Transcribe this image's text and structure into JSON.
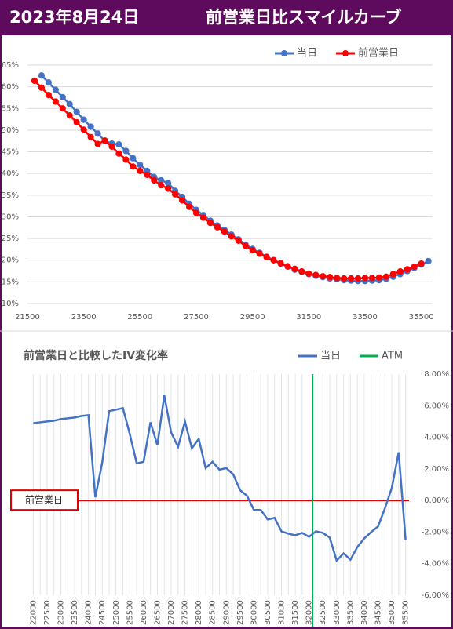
{
  "header": {
    "date": "2023年8月24日",
    "title": "前営業日比スマイルカーブ"
  },
  "chart_data": [
    {
      "type": "line",
      "markers": true,
      "grid": "y",
      "y_axis_side": "left",
      "series": [
        {
          "name": "当日",
          "color": "#4472c4",
          "x": [
            22000,
            22250,
            22500,
            22750,
            23000,
            23250,
            23500,
            23750,
            24000,
            24250,
            24500,
            24750,
            25000,
            25250,
            25500,
            25750,
            26000,
            26250,
            26500,
            26750,
            27000,
            27250,
            27500,
            27750,
            28000,
            28250,
            28500,
            28750,
            29000,
            29250,
            29500,
            29750,
            30000,
            30250,
            30500,
            30750,
            31000,
            31250,
            31500,
            31750,
            32000,
            32250,
            32500,
            32750,
            33000,
            33250,
            33500,
            33750,
            34000,
            34250,
            34500,
            34750,
            35000,
            35250,
            35500,
            35750
          ],
          "values": [
            62.6,
            61,
            59.3,
            57.6,
            56,
            54.2,
            52.4,
            50.8,
            49.2,
            47.5,
            46.9,
            46.7,
            45.2,
            43.5,
            42,
            40.6,
            39.2,
            38.4,
            37.8,
            36,
            34.6,
            33,
            31.6,
            30.4,
            29.1,
            28,
            27,
            25.9,
            24.8,
            23.6,
            22.6,
            21.7,
            20.8,
            20,
            19.2,
            18.5,
            17.8,
            17.3,
            16.8,
            16.4,
            16.1,
            15.8,
            15.6,
            15.4,
            15.3,
            15.2,
            15.2,
            15.3,
            15.4,
            15.7,
            16.2,
            16.8,
            17.5,
            18.2,
            19,
            19.8
          ]
        },
        {
          "name": "前営業日",
          "color": "#ff0000",
          "x": [
            21750,
            22000,
            22250,
            22500,
            22750,
            23000,
            23250,
            23500,
            23750,
            24000,
            24250,
            24500,
            24750,
            25000,
            25250,
            25500,
            25750,
            26000,
            26250,
            26500,
            26750,
            27000,
            27250,
            27500,
            27750,
            28000,
            28250,
            28500,
            28750,
            29000,
            29250,
            29500,
            29750,
            30000,
            30250,
            30500,
            30750,
            31000,
            31250,
            31500,
            31750,
            32000,
            32250,
            32500,
            32750,
            33000,
            33250,
            33500,
            33750,
            34000,
            34250,
            34500,
            34750,
            35000,
            35250,
            35500
          ],
          "values": [
            61.4,
            59.8,
            58.1,
            56.6,
            55,
            53.4,
            51.8,
            50.1,
            48.4,
            46.8,
            47.6,
            46.2,
            44.6,
            43.2,
            41.6,
            40.6,
            39.7,
            38.4,
            37.3,
            36.5,
            35.2,
            33.8,
            32.3,
            30.9,
            29.8,
            28.6,
            27.6,
            26.6,
            25.5,
            24.5,
            23.3,
            22.3,
            21.5,
            20.7,
            20,
            19.3,
            18.6,
            18,
            17.4,
            16.9,
            16.6,
            16.3,
            16.1,
            15.9,
            15.8,
            15.8,
            15.8,
            15.9,
            15.9,
            16,
            16.2,
            16.8,
            17.4,
            17.9,
            18.5,
            19.2
          ]
        }
      ],
      "xlim": [
        21500,
        35900
      ],
      "xticks": [
        21500,
        23500,
        25500,
        27500,
        29500,
        31500,
        33500,
        35500
      ],
      "ylim": [
        10,
        65
      ],
      "yticks": [
        {
          "value": 10,
          "label": "10%"
        },
        {
          "value": 15,
          "label": "15%"
        },
        {
          "value": 20,
          "label": "20%"
        },
        {
          "value": 25,
          "label": "25%"
        },
        {
          "value": 30,
          "label": "30%"
        },
        {
          "value": 35,
          "label": "35%"
        },
        {
          "value": 40,
          "label": "40%"
        },
        {
          "value": 45,
          "label": "45%"
        },
        {
          "value": 50,
          "label": "50%"
        },
        {
          "value": 55,
          "label": "55%"
        },
        {
          "value": 60,
          "label": "60%"
        },
        {
          "value": 65,
          "label": "65%"
        }
      ]
    },
    {
      "type": "line",
      "markers": false,
      "grid": "x",
      "y_axis_side": "right",
      "title": "前営業日と比較したIV変化率",
      "series": [
        {
          "name": "当日",
          "color": "#4472c4",
          "x": [
            22000,
            22250,
            22500,
            22750,
            23000,
            23250,
            23500,
            23750,
            24000,
            24250,
            24500,
            24750,
            25000,
            25250,
            25500,
            25750,
            26000,
            26250,
            26500,
            26750,
            27000,
            27250,
            27500,
            27750,
            28000,
            28250,
            28500,
            28750,
            29000,
            29250,
            29500,
            29750,
            30000,
            30250,
            30500,
            30750,
            31000,
            31250,
            31500,
            31750,
            32000,
            32250,
            32500,
            32750,
            33000,
            33250,
            33500,
            33750,
            34000,
            34250,
            34500,
            34750,
            35000,
            35250,
            35500
          ],
          "values": [
            4.9,
            4.95,
            5.0,
            5.05,
            5.15,
            5.2,
            5.25,
            5.35,
            5.4,
            0.2,
            2.4,
            5.65,
            5.75,
            5.85,
            4.2,
            2.35,
            2.45,
            4.95,
            3.5,
            6.65,
            4.3,
            3.4,
            5.0,
            3.3,
            3.9,
            2.05,
            2.45,
            1.95,
            2.05,
            1.65,
            0.65,
            0.3,
            -0.6,
            -0.6,
            -1.2,
            -1.1,
            -1.95,
            -2.1,
            -2.2,
            -2.05,
            -2.3,
            -1.95,
            -2.05,
            -2.35,
            -3.8,
            -3.35,
            -3.75,
            -2.95,
            -2.4,
            -2.0,
            -1.65,
            -0.5,
            0.8,
            3.05,
            -2.5
          ]
        }
      ],
      "vlines": [
        {
          "name": "ATM",
          "color": "#00b050",
          "x": 32125
        }
      ],
      "annotation": {
        "text": "前営業日",
        "y": 0,
        "color": "#e00000"
      },
      "xlim": [
        21875,
        35625
      ],
      "xticks": [
        22000,
        22500,
        23000,
        23500,
        24000,
        24500,
        25000,
        25500,
        26000,
        26500,
        27000,
        27500,
        28000,
        28500,
        29000,
        29500,
        30000,
        30500,
        31000,
        31500,
        32000,
        32500,
        33000,
        33500,
        34000,
        34500,
        35000,
        35500
      ],
      "ylim": [
        -6,
        8
      ],
      "yticks": [
        {
          "value": 8,
          "label": "8.00%"
        },
        {
          "value": 6,
          "label": "6.00%"
        },
        {
          "value": 4,
          "label": "4.00%"
        },
        {
          "value": 2,
          "label": "2.00%"
        },
        {
          "value": 0,
          "label": "0.00%"
        },
        {
          "value": -2,
          "label": "-2.00%"
        },
        {
          "value": -4,
          "label": "-4.00%"
        },
        {
          "value": -6,
          "label": "-6.00%"
        }
      ]
    }
  ]
}
